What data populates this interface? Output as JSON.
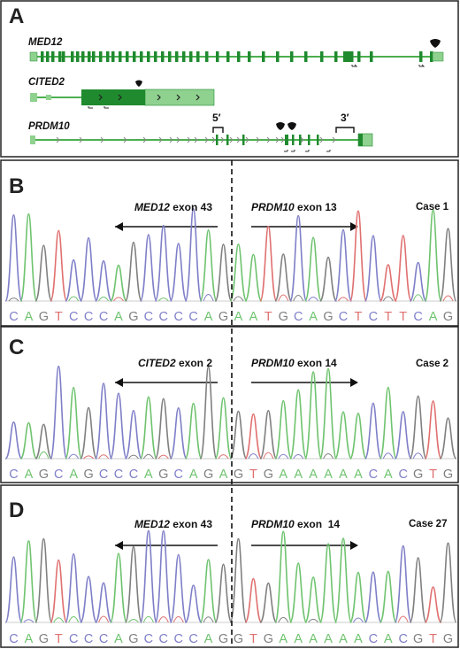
{
  "panels": [
    {
      "letter": "A"
    },
    {
      "letter": "B",
      "left_label_gene": "MED12",
      "left_label_exon": "exon 43",
      "right_label_gene": "PRDM10",
      "right_label_exon": "exon 13",
      "case": "Case 1",
      "sequence": "CAGTCCCAGCCCCAGAATGCAGCTCTTCAG"
    },
    {
      "letter": "C",
      "left_label_gene": "CITED2",
      "left_label_exon": "exon 2",
      "right_label_gene": "PRDM10",
      "right_label_exon": "exon 14",
      "case": "Case 2",
      "sequence": "CAGCAGCCCAGCAGAGTGAAAAAACACGTG"
    },
    {
      "letter": "D",
      "left_label_gene": "MED12",
      "left_label_exon": "exon 43",
      "right_label_gene": "PRDM10",
      "right_label_exon": "exon  14",
      "case": "Case 27",
      "sequence": "CAGTCCCAGCCCCAGGTGAAAAAACACGTG"
    }
  ],
  "genes": [
    {
      "name": "MED12"
    },
    {
      "name": "CITED2"
    },
    {
      "name": "PRDM10",
      "five_prime": "5′",
      "three_prime": "3′"
    }
  ],
  "colors": {
    "A": "#5cb85c",
    "C": "#4aa8c8",
    "G": "#888888",
    "T": "#e06a6a",
    "exon": "#1f8a2e",
    "utr": "#8fd18f",
    "intron": "#4caf50",
    "frame": "#222222"
  }
}
